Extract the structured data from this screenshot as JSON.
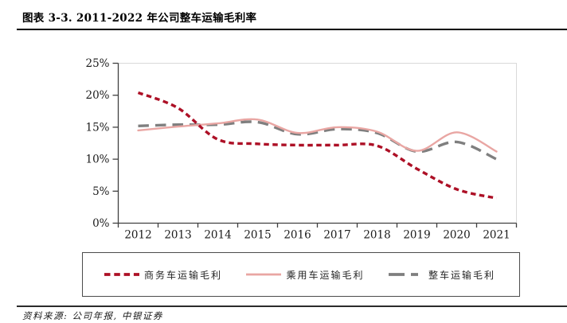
{
  "header": {
    "title": "图表 3-3. 2011-2022 年公司整车运输毛利率"
  },
  "source": {
    "label": "资料来源: 公司年报, 中银证券"
  },
  "chart_data": {
    "type": "line",
    "title": "图表 3-3. 2011-2022 年公司整车运输毛利率",
    "categories": [
      "2012",
      "2013",
      "2014",
      "2015",
      "2016",
      "2017",
      "2018",
      "2019",
      "2020",
      "2021"
    ],
    "series": [
      {
        "name": "商务车运输毛利",
        "color": "#ad1026",
        "line_style": "dash-dense",
        "values": [
          20.4,
          18.0,
          13.1,
          12.4,
          12.2,
          12.2,
          12.1,
          8.5,
          5.3,
          3.9
        ]
      },
      {
        "name": "乘用车运输毛利",
        "color": "#e9a6a3",
        "line_style": "solid",
        "values": [
          14.5,
          15.1,
          15.6,
          16.2,
          14.1,
          15.0,
          14.3,
          11.3,
          14.2,
          11.2
        ]
      },
      {
        "name": "整车运输毛利",
        "color": "#7f7f7f",
        "line_style": "dash-long",
        "values": [
          15.2,
          15.4,
          15.4,
          15.8,
          13.9,
          14.7,
          14.1,
          11.2,
          12.7,
          10.0
        ]
      }
    ],
    "y_ticks": [
      "0%",
      "5%",
      "10%",
      "15%",
      "20%",
      "25%"
    ],
    "ylim": [
      0,
      25
    ],
    "unit": "%",
    "grid": false,
    "legend_position": "bottom-box",
    "axis_color": "#404040",
    "plot_border_color": "#d9d9d9",
    "tick_label_color": "#1a1a1a"
  }
}
